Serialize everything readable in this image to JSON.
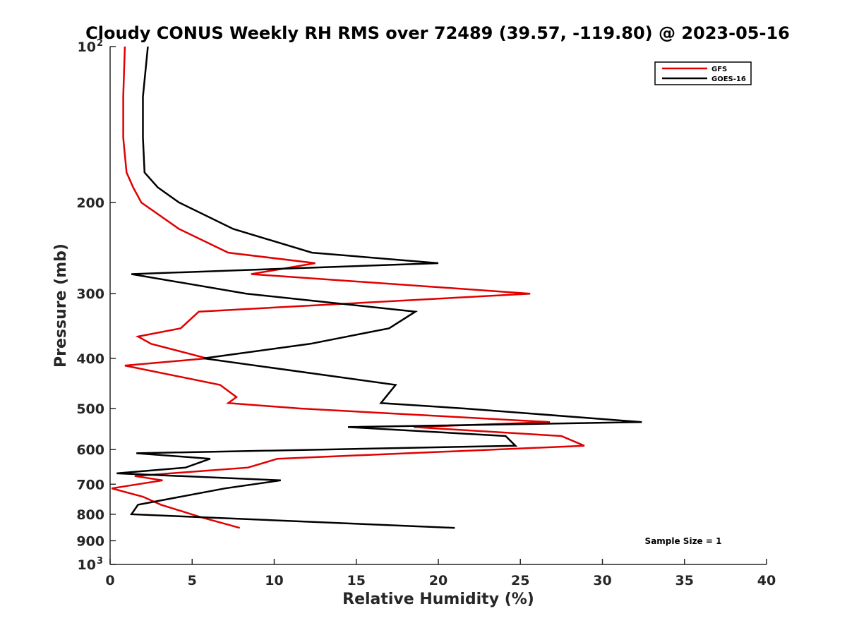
{
  "chart_data": {
    "type": "line",
    "title": "Cloudy CONUS Weekly RH RMS over 72489 (39.57, -119.80) @ 2023-05-16",
    "xlabel": "Relative Humidity (%)",
    "ylabel": "Pressure (mb)",
    "xlim": [
      0,
      40
    ],
    "ylim": [
      100,
      1000
    ],
    "yscale": "log",
    "y_reversed": true,
    "x_ticks": [
      "0",
      "5",
      "10",
      "15",
      "20",
      "25",
      "30",
      "35",
      "40"
    ],
    "y_ticks": [
      {
        "value": 100,
        "label": "10",
        "sup": "2"
      },
      {
        "value": 200,
        "label": "200"
      },
      {
        "value": 300,
        "label": "300"
      },
      {
        "value": 400,
        "label": "400"
      },
      {
        "value": 500,
        "label": "500"
      },
      {
        "value": 600,
        "label": "600"
      },
      {
        "value": 700,
        "label": "700"
      },
      {
        "value": 800,
        "label": "800"
      },
      {
        "value": 900,
        "label": "900"
      },
      {
        "value": 1000,
        "label": "10",
        "sup": "3"
      }
    ],
    "grid": false,
    "legend_position": "top-right",
    "annotation": "Sample Size = 1",
    "series": [
      {
        "name": "GFS",
        "color": "#e00000",
        "points": [
          [
            0.9,
            100
          ],
          [
            0.8,
            125
          ],
          [
            0.8,
            150
          ],
          [
            1.0,
            175
          ],
          [
            1.4,
            187
          ],
          [
            1.9,
            200
          ],
          [
            4.2,
            225
          ],
          [
            7.2,
            250
          ],
          [
            12.5,
            262
          ],
          [
            8.6,
            275
          ],
          [
            25.6,
            300
          ],
          [
            5.4,
            325
          ],
          [
            4.3,
            350
          ],
          [
            1.7,
            363
          ],
          [
            2.5,
            375
          ],
          [
            5.9,
            400
          ],
          [
            0.9,
            413
          ],
          [
            6.7,
            450
          ],
          [
            7.7,
            475
          ],
          [
            7.2,
            488
          ],
          [
            11.6,
            500
          ],
          [
            26.8,
            531
          ],
          [
            18.5,
            543
          ],
          [
            27.5,
            565
          ],
          [
            28.9,
            590
          ],
          [
            10.2,
            625
          ],
          [
            8.4,
            650
          ],
          [
            1.5,
            675
          ],
          [
            3.2,
            688
          ],
          [
            0.1,
            713
          ],
          [
            2.0,
            740
          ],
          [
            3.1,
            767
          ],
          [
            5.5,
            810
          ],
          [
            7.9,
            850
          ]
        ]
      },
      {
        "name": "GOES-16",
        "color": "#000000",
        "points": [
          [
            2.3,
            100
          ],
          [
            2.0,
            125
          ],
          [
            2.0,
            150
          ],
          [
            2.1,
            175
          ],
          [
            2.9,
            187
          ],
          [
            4.2,
            200
          ],
          [
            7.5,
            225
          ],
          [
            12.3,
            250
          ],
          [
            20.0,
            262
          ],
          [
            1.3,
            275
          ],
          [
            8.3,
            300
          ],
          [
            18.6,
            325
          ],
          [
            17.0,
            350
          ],
          [
            12.2,
            375
          ],
          [
            5.7,
            400
          ],
          [
            17.4,
            450
          ],
          [
            16.5,
            488
          ],
          [
            21.6,
            500
          ],
          [
            32.4,
            531
          ],
          [
            14.5,
            543
          ],
          [
            24.1,
            565
          ],
          [
            24.7,
            590
          ],
          [
            1.6,
            610
          ],
          [
            6.1,
            625
          ],
          [
            4.6,
            650
          ],
          [
            0.4,
            667
          ],
          [
            10.4,
            688
          ],
          [
            7.0,
            713
          ],
          [
            1.7,
            767
          ],
          [
            1.3,
            800
          ],
          [
            21.0,
            850
          ]
        ]
      }
    ]
  }
}
